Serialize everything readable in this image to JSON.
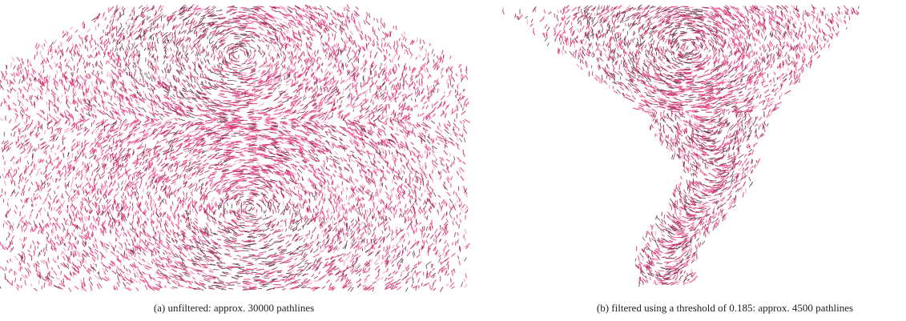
{
  "figures": [
    {
      "caption": "(a) unfiltered: approx. 30000 pathlines"
    },
    {
      "caption": "(b) filtered using a threshold of 0.185: approx. 4500 pathlines"
    }
  ]
}
